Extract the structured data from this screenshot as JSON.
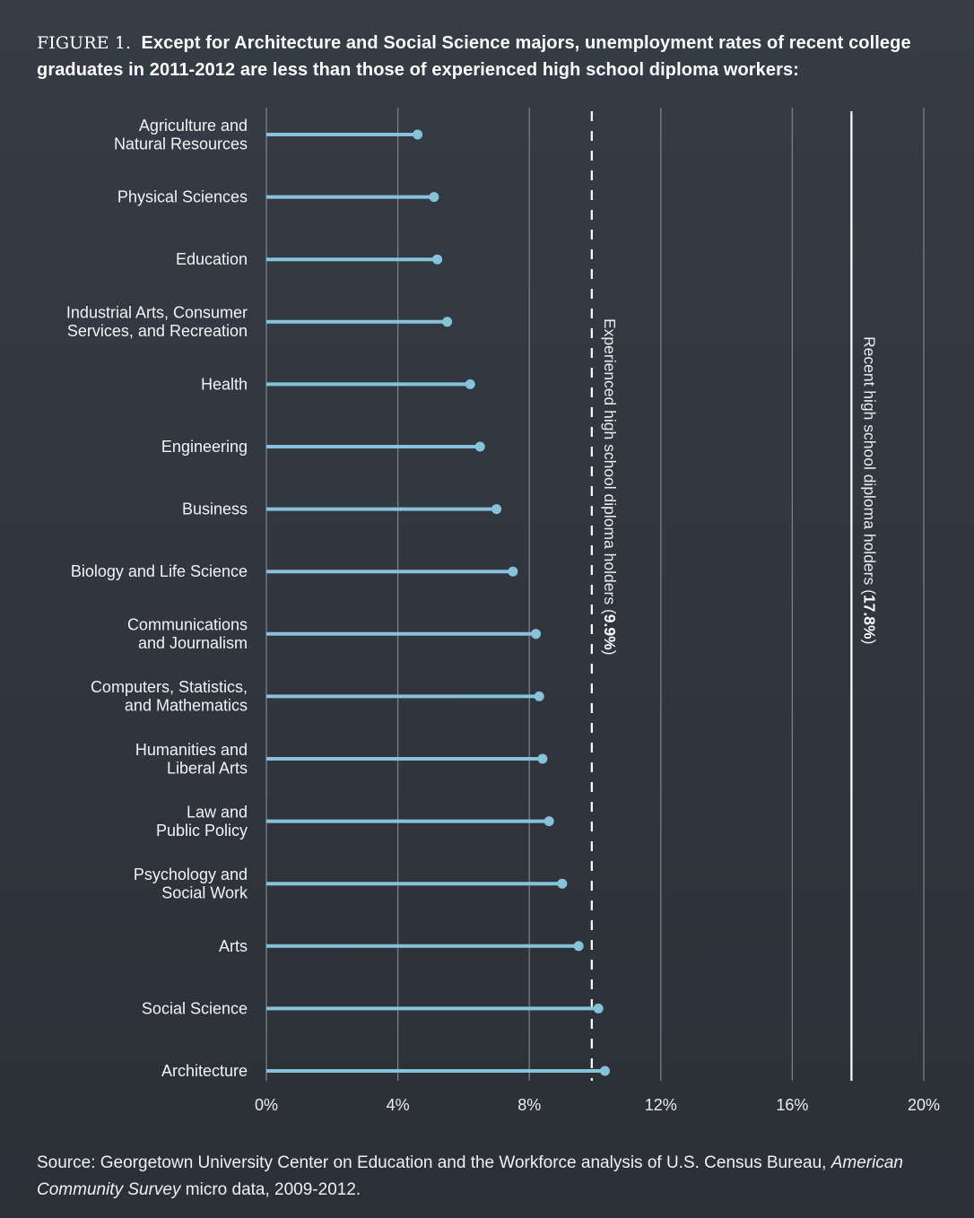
{
  "title": {
    "figure_label": "FIGURE 1.",
    "text": "Except for Architecture and Social Science majors, unemployment rates of recent college graduates in 2011-2012 are less than those of experienced high school diploma workers:"
  },
  "source": {
    "prefix": "Source: Georgetown University Center on Education and the Workforce analysis of U.S. Census Bureau,",
    "italic": "American Community Survey",
    "suffix": "micro data, 2009-2012."
  },
  "colors": {
    "bar": "#86c2d9",
    "grid": "#7a7f87",
    "reference": "#ffffff",
    "background": "#333a43"
  },
  "chart_data": {
    "type": "bar",
    "orientation": "horizontal",
    "style": "lollipop",
    "title": "Except for Architecture and Social Science majors, unemployment rates of recent college graduates in 2011-2012 are less than those of experienced high school diploma workers",
    "xlabel": "",
    "ylabel": "",
    "xlim": [
      0,
      20
    ],
    "x_ticks": [
      0,
      4,
      8,
      12,
      16,
      20
    ],
    "x_tick_labels": [
      "0%",
      "4%",
      "8%",
      "12%",
      "16%",
      "20%"
    ],
    "grid": true,
    "categories": [
      [
        "Agriculture and",
        "Natural Resources"
      ],
      [
        "Physical Sciences"
      ],
      [
        "Education"
      ],
      [
        "Industrial Arts, Consumer",
        "Services, and Recreation"
      ],
      [
        "Health"
      ],
      [
        "Engineering"
      ],
      [
        "Business"
      ],
      [
        "Biology and Life Science"
      ],
      [
        "Communications",
        "and Journalism"
      ],
      [
        "Computers, Statistics,",
        "and Mathematics"
      ],
      [
        "Humanities and",
        "Liberal Arts"
      ],
      [
        "Law and",
        "Public Policy"
      ],
      [
        "Psychology and",
        "Social Work"
      ],
      [
        "Arts"
      ],
      [
        "Social Science"
      ],
      [
        "Architecture"
      ]
    ],
    "values": [
      4.6,
      5.1,
      5.2,
      5.5,
      6.2,
      6.5,
      7.0,
      7.5,
      8.2,
      8.3,
      8.4,
      8.6,
      9.0,
      9.5,
      10.1,
      10.3
    ],
    "unit": "%",
    "reference_lines": [
      {
        "name": "Experienced high school diploma holders",
        "value": 9.9,
        "label": "Experienced high school diploma holders",
        "value_label": "9.9%",
        "style": "dashed"
      },
      {
        "name": "Recent high school diploma holders",
        "value": 17.8,
        "label": "Recent high school diploma holders",
        "value_label": "17.8%",
        "style": "solid"
      }
    ]
  }
}
